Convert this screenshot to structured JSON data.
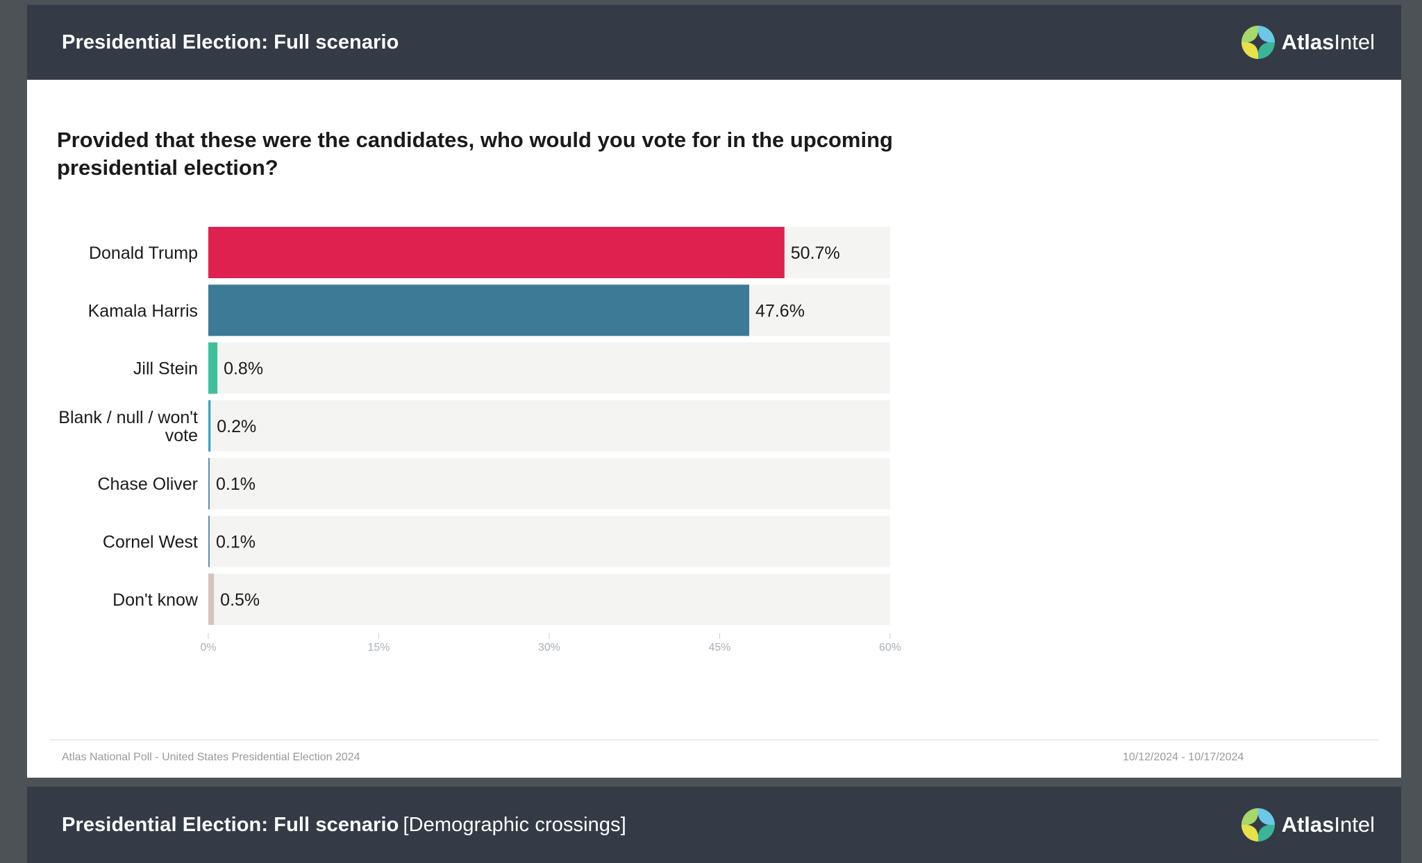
{
  "header": {
    "title": "Presidential Election: Full scenario",
    "logo_bold": "Atlas",
    "logo_regular": "Intel"
  },
  "question": "Provided that these were the candidates, who would you vote for in the upcoming presidential election?",
  "chart_data": {
    "type": "bar",
    "orientation": "horizontal",
    "title": "",
    "xlabel": "",
    "ylabel": "",
    "xlim": [
      0,
      60
    ],
    "ticks": [
      0,
      15,
      30,
      45,
      60
    ],
    "tick_labels": [
      "0%",
      "15%",
      "30%",
      "45%",
      "60%"
    ],
    "categories": [
      [
        "Donald Trump"
      ],
      [
        "Kamala Harris"
      ],
      [
        "Jill Stein"
      ],
      [
        "Blank / null / won't",
        "vote"
      ],
      [
        "Chase Oliver"
      ],
      [
        "Cornel West"
      ],
      [
        "Don't know"
      ]
    ],
    "values": [
      50.7,
      47.6,
      0.8,
      0.2,
      0.1,
      0.1,
      0.5
    ],
    "value_labels": [
      "50.7%",
      "47.6%",
      "0.8%",
      "0.2%",
      "0.1%",
      "0.1%",
      "0.5%"
    ],
    "colors": [
      "#df214f",
      "#3d7a96",
      "#3dbf9c",
      "#3aa3c7",
      "#5e8fb0",
      "#5e8fb0",
      "#d4c4be"
    ],
    "track_color": "#f4f4f2",
    "grid": false,
    "legend": "none"
  },
  "footer": {
    "source": "Atlas National Poll - United States Presidential Election 2024",
    "dates": "10/12/2024 - 10/17/2024"
  },
  "next_slide": {
    "title": "Presidential Election: Full scenario",
    "suffix": "[Demographic crossings]",
    "logo_bold": "Atlas",
    "logo_regular": "Intel"
  }
}
